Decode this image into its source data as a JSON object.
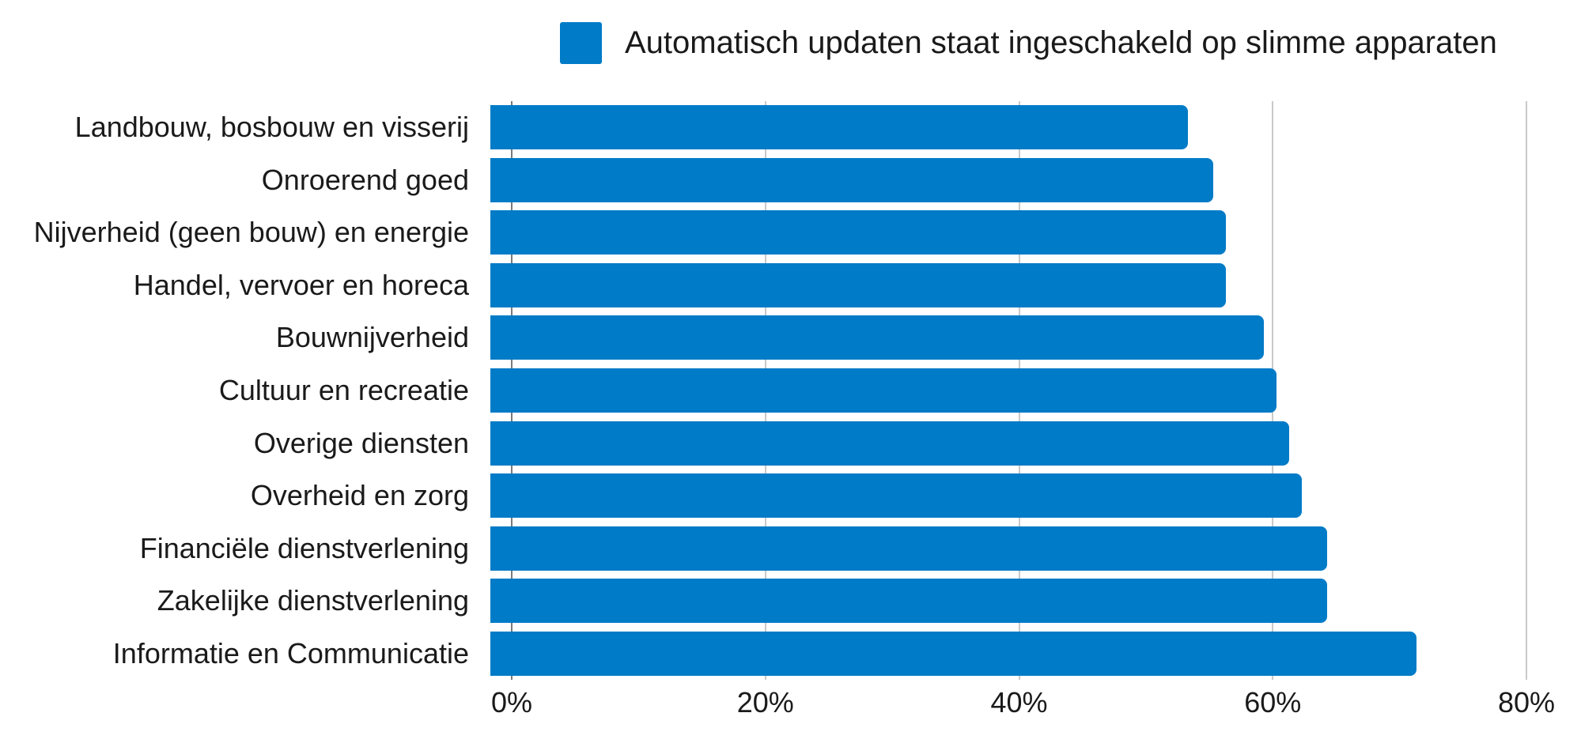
{
  "chart_data": {
    "type": "bar",
    "orientation": "horizontal",
    "legend_label": "Automatisch updaten staat ingeschakeld op slimme apparaten",
    "legend_position": "top",
    "categories": [
      "Landbouw, bosbouw en visserij",
      "Onroerend goed",
      "Nijverheid (geen bouw) en energie",
      "Handel, vervoer en horeca",
      "Bouwnijverheid",
      "Cultuur en recreatie",
      "Overige diensten",
      "Overheid en zorg",
      "Financiële dienstverlening",
      "Zakelijke dienstverlening",
      "Informatie en Communicatie"
    ],
    "values": [
      55,
      57,
      58,
      58,
      61,
      62,
      63,
      64,
      66,
      66,
      73
    ],
    "unit": "%",
    "xlim": [
      0,
      80
    ],
    "x_tick_values": [
      0,
      20,
      40,
      60,
      80
    ],
    "x_tick_labels": [
      "0%",
      "20%",
      "40%",
      "60%",
      "80%"
    ],
    "grid": "vertical gridlines on, drawn behind bars",
    "colors": {
      "bar": "#007bc7",
      "text": "#1a1a1a",
      "gridline": "#c9c9c9",
      "axis_line": "#7a7a7a",
      "background": "#ffffff"
    }
  }
}
